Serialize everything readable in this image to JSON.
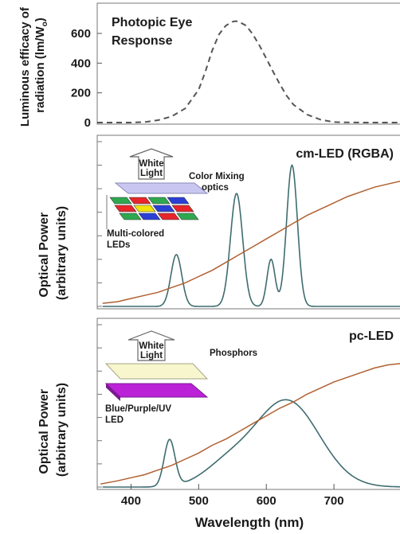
{
  "chart_data": [
    {
      "type": "line",
      "title": "Photopic Eye Response",
      "ylabel_line1": "Luminous efficacy of",
      "ylabel_line2": "radiation (lm/W",
      "ylabel_sub": "o",
      "ylabel_close": ")",
      "xlim": [
        350,
        800
      ],
      "ylim": [
        0,
        750
      ],
      "yticks": [
        0,
        200,
        400,
        600
      ],
      "grid": false,
      "series": [
        {
          "style": "dashed",
          "color": "#555555",
          "x": [
            350,
            380,
            400,
            420,
            440,
            460,
            480,
            500,
            510,
            520,
            530,
            540,
            550,
            555,
            560,
            570,
            580,
            590,
            600,
            610,
            620,
            630,
            640,
            660,
            680,
            700,
            720,
            750,
            780,
            800
          ],
          "y": [
            0,
            0,
            0,
            3,
            16,
            41,
            95,
            221,
            344,
            485,
            593,
            652,
            679,
            683,
            677,
            653,
            595,
            518,
            431,
            343,
            258,
            181,
            121,
            54,
            20,
            3,
            1,
            0,
            0,
            0
          ]
        }
      ]
    },
    {
      "type": "line",
      "title": "cm-LED (RGBA)",
      "ylabel_line1": "Optical Power",
      "ylabel_line2": "(arbitrary units)",
      "xlim": [
        350,
        800
      ],
      "ylim": [
        0,
        1.05
      ],
      "inset_labels": {
        "arrow_line1": "White",
        "arrow_line2": "Light",
        "optics_line1": "Color Mixing",
        "optics_line2": "optics",
        "leds_line1": "Multi-colored",
        "leds_line2": "LEDs"
      },
      "series": [
        {
          "name": "spectrum",
          "color": "#3f6c70",
          "peaks": [
            {
              "center": 467,
              "width": 8,
              "height": 0.33
            },
            {
              "center": 556,
              "width": 9,
              "height": 0.72
            },
            {
              "center": 607,
              "width": 6,
              "height": 0.3
            },
            {
              "center": 638,
              "width": 8,
              "height": 0.9
            }
          ]
        },
        {
          "name": "eye-sensitivity",
          "color": "#b06030",
          "x": [
            358,
            380,
            400,
            420,
            440,
            460,
            480,
            500,
            520,
            540,
            560,
            580,
            600,
            620,
            640,
            660,
            680,
            700,
            720,
            740,
            760,
            780,
            800
          ],
          "y": [
            0.02,
            0.03,
            0.05,
            0.07,
            0.09,
            0.12,
            0.15,
            0.19,
            0.23,
            0.28,
            0.33,
            0.38,
            0.43,
            0.48,
            0.53,
            0.58,
            0.62,
            0.66,
            0.7,
            0.73,
            0.76,
            0.78,
            0.8
          ]
        }
      ]
    },
    {
      "type": "line",
      "title": "pc-LED",
      "ylabel_line1": "Optical Power",
      "ylabel_line2": "(arbitrary units)",
      "xlabel": "Wavelength (nm)",
      "xlim": [
        350,
        800
      ],
      "xticks": [
        400,
        500,
        600,
        700
      ],
      "ylim": [
        0,
        1.05
      ],
      "inset_labels": {
        "arrow_line1": "White",
        "arrow_line2": "Light",
        "phosphor_label": "Phosphors",
        "led_line1": "Blue/Purple/UV",
        "led_line2": "LED"
      },
      "series": [
        {
          "name": "spectrum",
          "color": "#3f6c70",
          "peaks": [
            {
              "center": 457,
              "width": 8,
              "height": 0.3
            },
            {
              "center": 630,
              "width": 48,
              "height": 0.56
            },
            {
              "center": 540,
              "width": 35,
              "height": 0.12
            }
          ]
        },
        {
          "name": "eye-sensitivity",
          "color": "#b06030",
          "x": [
            355,
            380,
            400,
            420,
            440,
            460,
            480,
            500,
            520,
            540,
            560,
            580,
            600,
            620,
            640,
            660,
            680,
            700,
            720,
            740,
            760,
            780,
            800
          ],
          "y": [
            0.02,
            0.04,
            0.06,
            0.08,
            0.11,
            0.14,
            0.18,
            0.22,
            0.27,
            0.31,
            0.36,
            0.41,
            0.46,
            0.51,
            0.55,
            0.6,
            0.64,
            0.68,
            0.71,
            0.74,
            0.77,
            0.79,
            0.8
          ]
        }
      ]
    }
  ]
}
